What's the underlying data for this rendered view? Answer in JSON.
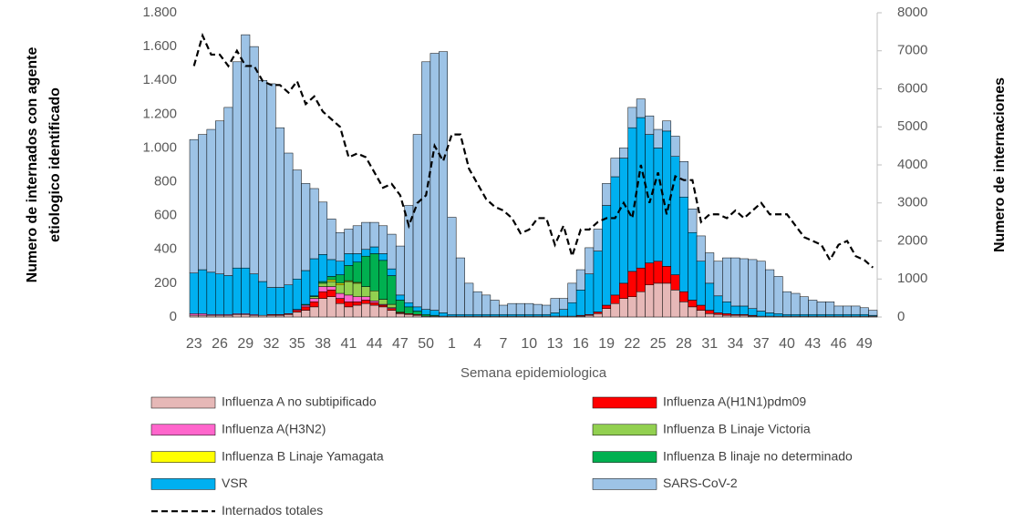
{
  "chart_data": {
    "type": "bar",
    "stacked": true,
    "x_label": "Semana epidemiologica",
    "y_label": [
      "Numero de internados con agente",
      "etiologico identificado"
    ],
    "y2_label": "Numero de internaciones",
    "categories": [
      "23",
      null,
      null,
      "26",
      null,
      null,
      "29",
      null,
      null,
      "32",
      null,
      null,
      "35",
      null,
      null,
      "38",
      null,
      null,
      "41",
      null,
      null,
      "44",
      null,
      null,
      "47",
      null,
      null,
      "50",
      null,
      null,
      "1",
      null,
      null,
      "4",
      null,
      null,
      "7",
      null,
      null,
      "10",
      null,
      null,
      "13",
      null,
      null,
      "16",
      null,
      null,
      "19",
      null,
      null,
      "22",
      null,
      null,
      "25",
      null,
      null,
      "28",
      null,
      null,
      "31",
      null,
      null,
      "34",
      null,
      null,
      "37",
      null,
      null,
      "40",
      null,
      null,
      "43",
      null,
      null,
      "46",
      null,
      null,
      "49",
      null
    ],
    "ylim": [
      0,
      1800
    ],
    "yticks": [
      0,
      200,
      400,
      600,
      800,
      {
        "value": 1000,
        "label": "1.000"
      },
      {
        "value": 1200,
        "label": "1.200"
      },
      {
        "value": 1400,
        "label": "1.400"
      },
      {
        "value": 1600,
        "label": "1.600"
      },
      {
        "value": 1800,
        "label": "1.800"
      }
    ],
    "y2lim": [
      0,
      8000
    ],
    "y2ticks": [
      0,
      1000,
      2000,
      3000,
      4000,
      5000,
      6000,
      7000,
      8000
    ],
    "series": [
      {
        "name": "Influenza A no subtipificado",
        "color": "#e6b8b7",
        "values": [
          10,
          10,
          10,
          10,
          10,
          15,
          15,
          10,
          10,
          10,
          10,
          15,
          30,
          40,
          60,
          110,
          120,
          80,
          60,
          70,
          80,
          70,
          60,
          40,
          20,
          15,
          10,
          5,
          5,
          5,
          5,
          5,
          5,
          5,
          5,
          5,
          5,
          5,
          5,
          5,
          5,
          5,
          5,
          5,
          5,
          5,
          10,
          20,
          50,
          80,
          110,
          120,
          150,
          190,
          200,
          200,
          160,
          90,
          60,
          40,
          20,
          15,
          10,
          10,
          10,
          5,
          5,
          5,
          5,
          5,
          5,
          5,
          5,
          5,
          5,
          5,
          5,
          5,
          5,
          5
        ]
      },
      {
        "name": "Influenza A(H1N1)pdm09",
        "color": "#ff0000",
        "values": [
          0,
          0,
          0,
          0,
          0,
          0,
          0,
          0,
          0,
          5,
          5,
          5,
          10,
          20,
          30,
          40,
          40,
          30,
          30,
          20,
          20,
          15,
          10,
          10,
          5,
          5,
          5,
          0,
          0,
          0,
          0,
          0,
          0,
          0,
          0,
          0,
          0,
          0,
          0,
          0,
          0,
          0,
          0,
          0,
          0,
          5,
          5,
          10,
          20,
          50,
          90,
          150,
          140,
          130,
          130,
          100,
          90,
          60,
          40,
          30,
          20,
          10,
          10,
          5,
          5,
          5,
          0,
          0,
          0,
          0,
          0,
          0,
          0,
          0,
          0,
          0,
          0,
          0,
          0,
          0
        ]
      },
      {
        "name": "Influenza A(H3N2)",
        "color": "#ff66cc",
        "values": [
          10,
          10,
          5,
          5,
          5,
          5,
          5,
          5,
          0,
          0,
          0,
          0,
          5,
          10,
          20,
          30,
          20,
          30,
          40,
          30,
          20,
          10,
          5,
          5,
          0,
          0,
          0,
          0,
          0,
          0,
          0,
          0,
          0,
          0,
          0,
          0,
          0,
          0,
          0,
          0,
          0,
          0,
          0,
          0,
          0,
          0,
          0,
          0,
          0,
          0,
          0,
          0,
          0,
          0,
          0,
          0,
          0,
          0,
          0,
          0,
          0,
          0,
          0,
          0,
          0,
          0,
          0,
          0,
          0,
          0,
          0,
          0,
          0,
          0,
          0,
          0,
          0,
          0,
          0,
          0
        ]
      },
      {
        "name": "Influenza B Linaje Victoria",
        "color": "#92d050",
        "values": [
          0,
          0,
          0,
          0,
          0,
          0,
          0,
          0,
          0,
          0,
          0,
          0,
          0,
          0,
          10,
          20,
          30,
          50,
          80,
          80,
          60,
          60,
          30,
          20,
          5,
          0,
          0,
          0,
          0,
          0,
          0,
          0,
          0,
          0,
          0,
          0,
          0,
          0,
          0,
          0,
          0,
          0,
          0,
          0,
          0,
          0,
          0,
          0,
          0,
          0,
          0,
          0,
          0,
          0,
          0,
          0,
          0,
          0,
          0,
          0,
          0,
          0,
          0,
          0,
          0,
          0,
          0,
          0,
          0,
          0,
          0,
          0,
          0,
          0,
          0,
          0,
          0,
          0,
          0,
          0
        ]
      },
      {
        "name": "Influenza B Linaje Yamagata",
        "color": "#ffff00",
        "values": [
          0,
          0,
          0,
          0,
          0,
          0,
          0,
          0,
          0,
          0,
          0,
          0,
          0,
          0,
          0,
          0,
          10,
          10,
          5,
          5,
          0,
          0,
          0,
          0,
          0,
          0,
          0,
          0,
          0,
          0,
          0,
          0,
          0,
          0,
          0,
          0,
          0,
          0,
          0,
          0,
          0,
          0,
          0,
          0,
          0,
          0,
          0,
          0,
          0,
          0,
          0,
          0,
          0,
          0,
          0,
          0,
          0,
          0,
          0,
          0,
          0,
          0,
          0,
          0,
          0,
          0,
          0,
          0,
          0,
          0,
          0,
          0,
          0,
          0,
          0,
          0,
          0,
          0,
          0,
          0
        ]
      },
      {
        "name": "Influenza B linaje no determinado",
        "color": "#00b050",
        "values": [
          0,
          0,
          0,
          0,
          0,
          0,
          0,
          0,
          0,
          0,
          0,
          0,
          0,
          5,
          5,
          10,
          20,
          50,
          90,
          120,
          180,
          220,
          230,
          170,
          70,
          40,
          20,
          10,
          5,
          0,
          0,
          0,
          0,
          0,
          0,
          0,
          0,
          0,
          0,
          0,
          0,
          0,
          0,
          0,
          0,
          0,
          0,
          0,
          0,
          0,
          0,
          0,
          0,
          0,
          0,
          0,
          0,
          0,
          0,
          0,
          0,
          0,
          0,
          0,
          0,
          0,
          0,
          0,
          0,
          0,
          0,
          0,
          0,
          0,
          0,
          0,
          0,
          0,
          0,
          0
        ]
      },
      {
        "name": "VSR",
        "color": "#00b0f0",
        "values": [
          240,
          260,
          250,
          240,
          230,
          270,
          270,
          240,
          200,
          160,
          160,
          170,
          180,
          200,
          220,
          160,
          100,
          80,
          70,
          50,
          40,
          40,
          40,
          40,
          30,
          25,
          25,
          30,
          30,
          20,
          10,
          10,
          10,
          10,
          10,
          10,
          10,
          10,
          10,
          10,
          10,
          10,
          20,
          40,
          80,
          150,
          240,
          360,
          590,
          700,
          740,
          850,
          890,
          760,
          670,
          800,
          700,
          560,
          400,
          260,
          160,
          100,
          70,
          50,
          50,
          40,
          30,
          20,
          15,
          10,
          10,
          10,
          10,
          10,
          10,
          10,
          10,
          10,
          10,
          5
        ]
      },
      {
        "name": "SARS-CoV-2",
        "color": "#9dc3e6",
        "values": [
          790,
          800,
          845,
          905,
          995,
          1220,
          1380,
          1345,
          1190,
          1205,
          945,
          780,
          645,
          515,
          415,
          310,
          240,
          170,
          145,
          165,
          160,
          145,
          165,
          205,
          290,
          575,
          1020,
          1465,
          1520,
          1545,
          575,
          335,
          185,
          135,
          115,
          85,
          55,
          65,
          65,
          65,
          60,
          55,
          85,
          65,
          115,
          120,
          155,
          130,
          130,
          110,
          60,
          120,
          110,
          110,
          110,
          60,
          120,
          210,
          140,
          150,
          180,
          205,
          260,
          285,
          280,
          290,
          295,
          255,
          220,
          135,
          125,
          105,
          85,
          75,
          75,
          50,
          50,
          50,
          40,
          30
        ]
      },
      {
        "name": "Internados totales",
        "type": "line",
        "axis": "y2",
        "color": "#000000",
        "values": [
          6600,
          7400,
          6900,
          6900,
          6600,
          7000,
          6600,
          6600,
          6200,
          6100,
          6100,
          5900,
          6200,
          5600,
          5800,
          5400,
          5200,
          5000,
          4200,
          4300,
          4200,
          3800,
          3400,
          3500,
          3200,
          2400,
          3000,
          3200,
          4500,
          4100,
          4800,
          4800,
          3900,
          3500,
          3100,
          2900,
          2800,
          2600,
          2200,
          2300,
          2600,
          2600,
          1900,
          2400,
          1600,
          2300,
          2300,
          2500,
          2600,
          2600,
          3000,
          2600,
          4000,
          3000,
          3800,
          2700,
          3700,
          3600,
          3600,
          2500,
          2700,
          2700,
          2600,
          2800,
          2600,
          2800,
          3000,
          2700,
          2700,
          2700,
          2400,
          2100,
          2000,
          1900,
          1500,
          1900,
          2000,
          1600,
          1500,
          1300
        ]
      }
    ]
  }
}
